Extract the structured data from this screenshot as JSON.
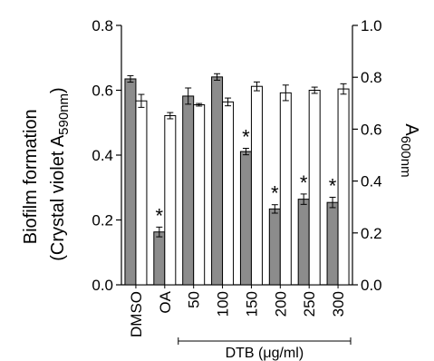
{
  "chart_data": {
    "type": "bar",
    "categories": [
      "DMSO",
      "OA",
      "50",
      "100",
      "150",
      "200",
      "250",
      "300"
    ],
    "series": [
      {
        "axis": "left",
        "color": "#8c8c8c",
        "values": [
          0.635,
          0.163,
          0.582,
          0.641,
          0.411,
          0.234,
          0.264,
          0.254
        ],
        "errors": [
          0.01,
          0.015,
          0.025,
          0.01,
          0.01,
          0.013,
          0.016,
          0.016
        ]
      },
      {
        "axis": "right",
        "color": "#ffffff",
        "values": [
          0.709,
          0.652,
          0.694,
          0.705,
          0.765,
          0.74,
          0.75,
          0.755
        ],
        "errors": [
          0.025,
          0.012,
          0.005,
          0.015,
          0.017,
          0.03,
          0.012,
          0.02
        ]
      }
    ],
    "significance": [
      "",
      "*",
      "",
      "",
      "*",
      "*",
      "*",
      "*"
    ],
    "ylabel_left_line1": "Biofilm formation",
    "ylabel_left_line2_pre": "(Crystal violet A",
    "ylabel_left_line2_sub": "590nm",
    "ylabel_left_line2_post": ")",
    "ylabel_right_main": "A",
    "ylabel_right_sub": "600nm",
    "group_label": "DTB (μg/ml)",
    "group_start_index": 2,
    "ylim_left": [
      0,
      0.8
    ],
    "ylim_right": [
      0,
      1.0
    ],
    "yticks_left": [
      "0.0",
      "0.2",
      "0.4",
      "0.6",
      "0.8"
    ],
    "yticks_right": [
      "0.0",
      "0.2",
      "0.4",
      "0.6",
      "0.8",
      "1.0"
    ],
    "grid": false
  }
}
